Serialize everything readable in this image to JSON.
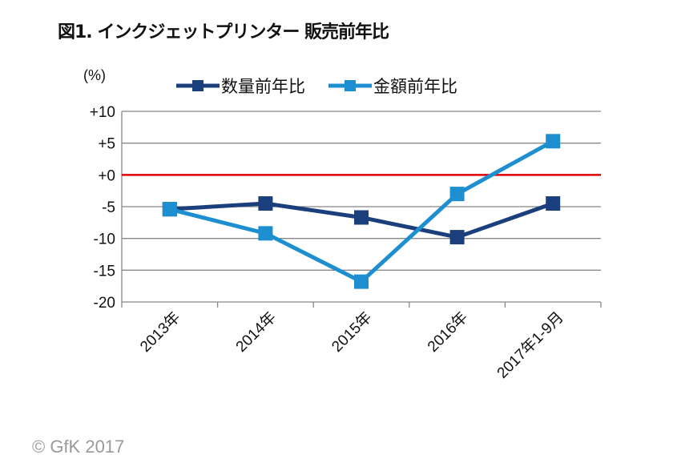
{
  "chart_data": {
    "type": "line",
    "title": "図1. インクジェットプリンター 販売前年比",
    "ylabel": "(%)",
    "ylim": [
      -20,
      10
    ],
    "yticks": [
      10,
      5,
      0,
      -5,
      -10,
      -15,
      -20
    ],
    "ytick_labels": [
      "+10",
      "+5",
      "+0",
      "-5",
      "-10",
      "-15",
      "-20"
    ],
    "categories": [
      "2013年",
      "2014年",
      "2015年",
      "2016年",
      "2017年1-9月"
    ],
    "series": [
      {
        "name": "数量前年比",
        "color": "#1b3f7c",
        "values": [
          -5.4,
          -4.5,
          -6.7,
          -9.8,
          -4.5
        ]
      },
      {
        "name": "金額前年比",
        "color": "#1d8fd0",
        "values": [
          -5.4,
          -9.2,
          -16.8,
          -3.0,
          5.3
        ]
      }
    ],
    "zero_line_color": "#e00000",
    "grid": true,
    "legend": "top"
  },
  "copyright": "© GfK 2017"
}
